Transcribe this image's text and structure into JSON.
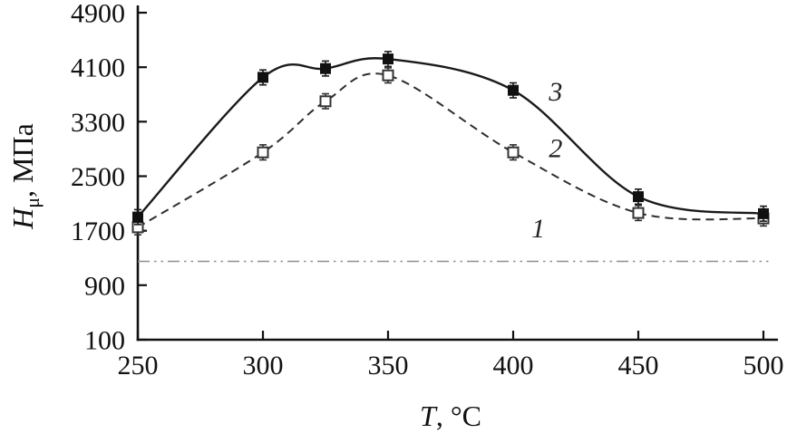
{
  "chart_data": {
    "type": "line",
    "title": "",
    "xlabel_var": "T",
    "xlabel_rest": ", °C",
    "ylabel_var": "H",
    "ylabel_sub": "μ",
    "ylabel_rest": ", МПа",
    "xlim": [
      250,
      500
    ],
    "ylim": [
      100,
      4900
    ],
    "xticks": [
      250,
      300,
      350,
      400,
      450,
      500
    ],
    "yticks": [
      100,
      900,
      1700,
      2500,
      3300,
      4100,
      4900
    ],
    "x": [
      250,
      300,
      325,
      350,
      400,
      450,
      500
    ],
    "series": [
      {
        "name": "1",
        "style": "dash-dot-dot",
        "marker": "none",
        "color": "#8f8f8f",
        "x": [
          250,
          502
        ],
        "values": [
          1250,
          1250
        ]
      },
      {
        "name": "2",
        "style": "dashed",
        "marker": "open-square",
        "color": "#2e2e2e",
        "values": [
          1750,
          2850,
          3600,
          3980,
          2850,
          1960,
          1880
        ],
        "error": 110
      },
      {
        "name": "3",
        "style": "solid",
        "marker": "filled-square",
        "color": "#1a1a1a",
        "values": [
          1900,
          3950,
          4080,
          4220,
          3760,
          2200,
          1950
        ],
        "error": 110
      }
    ],
    "annotations": [
      {
        "text": "1",
        "x": 410,
        "y": 1600
      },
      {
        "text": "2",
        "x": 417,
        "y": 2780
      },
      {
        "text": "3",
        "x": 417,
        "y": 3610
      }
    ],
    "colors": {
      "axis": "#111111",
      "tick_label": "#111111",
      "annotation": "#222222",
      "background": "#ffffff"
    }
  }
}
